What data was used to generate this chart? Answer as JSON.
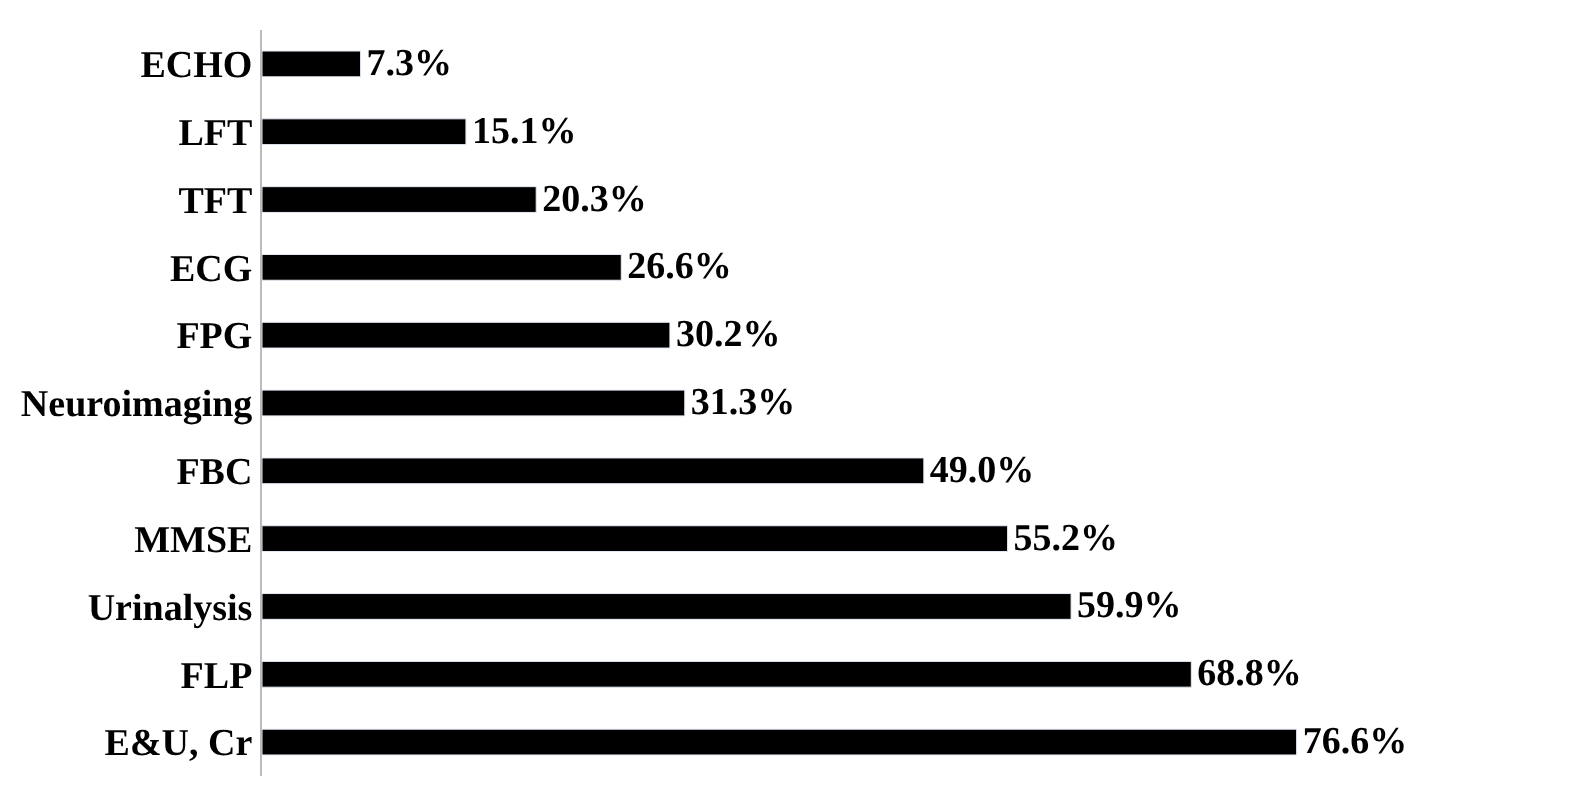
{
  "chart_data": {
    "type": "bar",
    "orientation": "horizontal",
    "categories": [
      "ECHO",
      "LFT",
      "TFT",
      "ECG",
      "FPG",
      "Neuroimaging",
      "FBC",
      "MMSE",
      "Urinalysis",
      "FLP",
      "E&U, Cr"
    ],
    "values": [
      7.3,
      15.1,
      20.3,
      26.6,
      30.2,
      31.3,
      49.0,
      55.2,
      59.9,
      68.8,
      76.6
    ],
    "value_labels": [
      "7.3%",
      "15.1%",
      "20.3%",
      "26.6%",
      "30.2%",
      "31.3%",
      "49.0%",
      "55.2%",
      "59.9%",
      "68.8%",
      "76.6%"
    ],
    "color": "#000000",
    "legend": false,
    "tick_labels": "y"
  }
}
